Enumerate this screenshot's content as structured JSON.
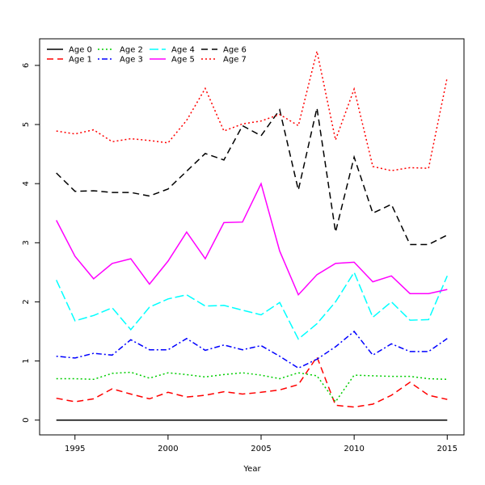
{
  "chart_data": {
    "type": "line",
    "title": "",
    "xlabel": "Year",
    "ylabel": "",
    "xlim": [
      1993.1,
      2015.9
    ],
    "ylim": [
      -0.25,
      6.45
    ],
    "xticks": [
      1995,
      2000,
      2005,
      2010,
      2015
    ],
    "yticks": [
      0,
      1,
      2,
      3,
      4,
      5,
      6
    ],
    "grid": false,
    "legend_position": "top-left",
    "x": [
      1994,
      1995,
      1996,
      1997,
      1998,
      1999,
      2000,
      2001,
      2002,
      2003,
      2004,
      2005,
      2006,
      2007,
      2008,
      2009,
      2010,
      2011,
      2012,
      2013,
      2014,
      2015
    ],
    "series": [
      {
        "name": "Age 0",
        "color": "#000000",
        "dash": "solid",
        "values": [
          0,
          0,
          0,
          0,
          0,
          0,
          0,
          0,
          0,
          0,
          0,
          0,
          0,
          0,
          0,
          0,
          0,
          0,
          0,
          0,
          0,
          0
        ]
      },
      {
        "name": "Age 1",
        "color": "#ff0000",
        "dash": "dashed",
        "values": [
          0.37,
          0.31,
          0.36,
          0.53,
          0.44,
          0.36,
          0.47,
          0.39,
          0.42,
          0.48,
          0.44,
          0.47,
          0.51,
          0.6,
          1.07,
          0.25,
          0.22,
          0.27,
          0.42,
          0.64,
          0.42,
          0.35
        ]
      },
      {
        "name": "Age 2",
        "color": "#00cd00",
        "dash": "dotted",
        "values": [
          0.7,
          0.7,
          0.69,
          0.79,
          0.81,
          0.71,
          0.8,
          0.77,
          0.73,
          0.77,
          0.8,
          0.76,
          0.7,
          0.8,
          0.75,
          0.31,
          0.76,
          0.75,
          0.74,
          0.74,
          0.7,
          0.69
        ]
      },
      {
        "name": "Age 3",
        "color": "#0000ff",
        "dash": "dotdash",
        "values": [
          1.08,
          1.05,
          1.13,
          1.1,
          1.36,
          1.19,
          1.19,
          1.38,
          1.18,
          1.27,
          1.19,
          1.26,
          1.08,
          0.88,
          1.03,
          1.24,
          1.5,
          1.1,
          1.29,
          1.16,
          1.16,
          1.38
        ]
      },
      {
        "name": "Age 4",
        "color": "#00ffff",
        "dash": "longdash",
        "values": [
          2.37,
          1.68,
          1.77,
          1.9,
          1.53,
          1.91,
          2.05,
          2.12,
          1.93,
          1.94,
          1.86,
          1.78,
          1.99,
          1.37,
          1.63,
          2.0,
          2.5,
          1.74,
          2.0,
          1.69,
          1.7,
          2.44
        ]
      },
      {
        "name": "Age 5",
        "color": "#ff00ff",
        "dash": "solid",
        "values": [
          3.38,
          2.77,
          2.39,
          2.65,
          2.73,
          2.3,
          2.69,
          3.18,
          2.73,
          3.34,
          3.35,
          4.0,
          2.86,
          2.12,
          2.46,
          2.65,
          2.67,
          2.34,
          2.44,
          2.14,
          2.14,
          2.21
        ]
      },
      {
        "name": "Age 6",
        "color": "#000000",
        "dash": "dashed",
        "values": [
          4.18,
          3.87,
          3.88,
          3.85,
          3.85,
          3.79,
          3.91,
          4.21,
          4.51,
          4.4,
          4.98,
          4.81,
          5.25,
          3.89,
          5.28,
          3.18,
          4.45,
          3.5,
          3.65,
          2.97,
          2.97,
          3.13
        ]
      },
      {
        "name": "Age 7",
        "color": "#ff0000",
        "dash": "dotted",
        "values": [
          4.89,
          4.84,
          4.91,
          4.71,
          4.76,
          4.73,
          4.69,
          5.07,
          5.61,
          4.89,
          5.01,
          5.06,
          5.17,
          4.98,
          6.24,
          4.74,
          5.6,
          4.29,
          4.22,
          4.27,
          4.26,
          5.8
        ]
      }
    ]
  }
}
